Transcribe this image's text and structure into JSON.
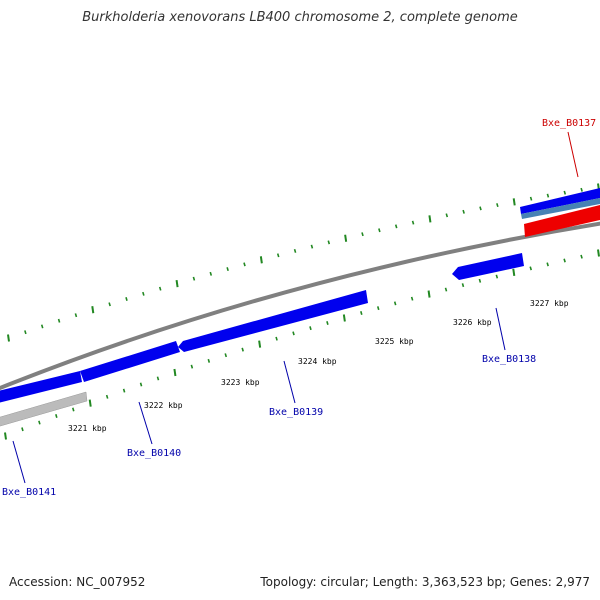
{
  "title": "Burkholderia xenovorans LB400 chromosome 2, complete genome",
  "footer": {
    "accession": "Accession: NC_007952",
    "summary": "Topology: circular; Length: 3,363,523 bp; Genes: 2,977"
  },
  "colors": {
    "forward_gene": "#0000ee",
    "reverse_gene": "#0000cc",
    "highlight_gene": "#ee0000",
    "pseudo_gene": "#bbbbbb",
    "backbone": "#808080",
    "tick": "#228822",
    "locus_label_blue": "#0000aa",
    "locus_label_red": "#cc0000"
  },
  "kbp_labels": [
    "3221 kbp",
    "3222 kbp",
    "3223 kbp",
    "3224 kbp",
    "3225 kbp",
    "3226 kbp",
    "3227 kbp"
  ],
  "locus_labels": [
    {
      "text": "Bxe_B0137",
      "color": "red"
    },
    {
      "text": "Bxe_B0138",
      "color": "blue"
    },
    {
      "text": "Bxe_B0139",
      "color": "blue"
    },
    {
      "text": "Bxe_B0140",
      "color": "blue"
    },
    {
      "text": "Bxe_B0141",
      "color": "blue"
    }
  ]
}
